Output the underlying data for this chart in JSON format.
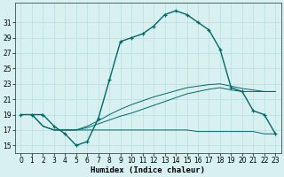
{
  "xlabel": "Humidex (Indice chaleur)",
  "bg_color": "#d8f0f0",
  "grid_color": "#b8dede",
  "line_color": "#006868",
  "x_ticks": [
    0,
    1,
    2,
    3,
    4,
    5,
    6,
    7,
    8,
    9,
    10,
    11,
    12,
    13,
    14,
    15,
    16,
    17,
    18,
    19,
    20,
    21,
    22,
    23
  ],
  "y_ticks": [
    15,
    17,
    19,
    21,
    23,
    25,
    27,
    29,
    31
  ],
  "ylim": [
    14.0,
    33.5
  ],
  "xlim": [
    -0.5,
    23.5
  ],
  "series": {
    "main": [
      19,
      19,
      19,
      17.5,
      16.5,
      15,
      15.5,
      18.5,
      23.5,
      28.5,
      29,
      29.5,
      30.5,
      32,
      32.5,
      32,
      31,
      30,
      27.5,
      22.5,
      22,
      19.5,
      19,
      16.5
    ],
    "line_flat": [
      19,
      19,
      17.5,
      17,
      17,
      17,
      17,
      17,
      17,
      17,
      17,
      17,
      17,
      17,
      17,
      17,
      16.8,
      16.8,
      16.8,
      16.8,
      16.8,
      16.8,
      16.5,
      16.5
    ],
    "line_rise1": [
      19,
      19,
      17.5,
      17,
      17,
      17,
      17.3,
      17.8,
      18.3,
      18.8,
      19.2,
      19.7,
      20.2,
      20.7,
      21.2,
      21.7,
      22.0,
      22.3,
      22.5,
      22.2,
      22.0,
      22.0,
      22.0,
      22.0
    ],
    "line_rise2": [
      19,
      19,
      17.5,
      17,
      17,
      17,
      17.5,
      18.2,
      19.0,
      19.7,
      20.3,
      20.8,
      21.3,
      21.7,
      22.1,
      22.5,
      22.7,
      22.9,
      23.0,
      22.7,
      22.4,
      22.2,
      22.0,
      22.0
    ]
  }
}
